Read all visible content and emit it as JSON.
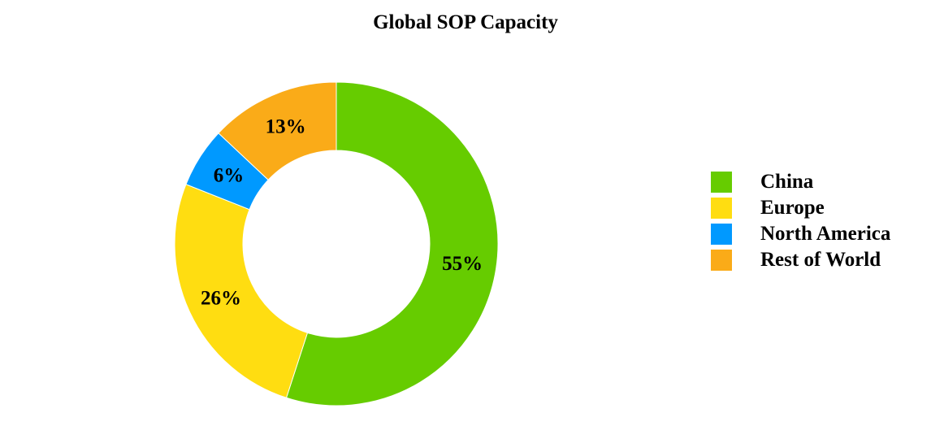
{
  "chart_data": {
    "type": "pie",
    "title": "Global SOP Capacity",
    "categories": [
      "China",
      "Europe",
      "North America",
      "Rest of World"
    ],
    "values": [
      55,
      26,
      6,
      13
    ],
    "labels": [
      "55%",
      "26%",
      "6%",
      "13%"
    ],
    "colors": [
      "#66cc00",
      "#ffdd11",
      "#0099ff",
      "#faab18"
    ],
    "donut": true,
    "legend": "right"
  }
}
